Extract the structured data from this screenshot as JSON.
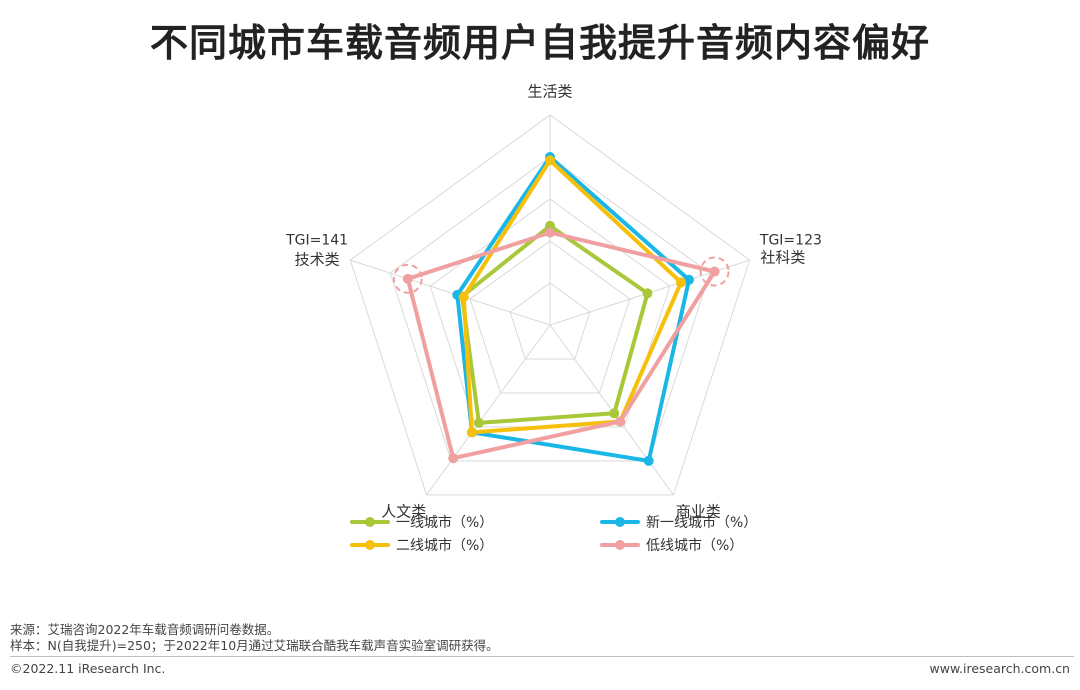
{
  "title": "不同城市车载音频用户自我提升音频内容偏好",
  "colors": {
    "tier1": "#a8c83a",
    "new_tier1": "#1ab7e6",
    "tier2": "#f5bf0a",
    "low_tier": "#f0a0a0",
    "grid": "#d9d9d9"
  },
  "chart_data": {
    "type": "radar",
    "axes": [
      "生活类",
      "社科类",
      "商业类",
      "人文类",
      "技术类"
    ],
    "rmax": 1.0,
    "series": [
      {
        "name": "一线城市（%）",
        "color_key": "tier1",
        "values": [
          0.59,
          0.61,
          0.65,
          0.72,
          0.55
        ]
      },
      {
        "name": "新一线城市（%）",
        "color_key": "new_tier1",
        "values": [
          1.0,
          0.87,
          1.0,
          0.79,
          0.58
        ]
      },
      {
        "name": "二线城市（%）",
        "color_key": "tier2",
        "values": [
          0.98,
          0.82,
          0.71,
          0.79,
          0.54
        ]
      },
      {
        "name": "低线城市（%）",
        "color_key": "low_tier",
        "values": [
          0.55,
          1.03,
          0.71,
          0.98,
          0.89
        ]
      }
    ],
    "annotations": [
      {
        "axis": "技术类",
        "text": "TGI=141"
      },
      {
        "axis": "社科类",
        "text": "TGI=123"
      }
    ]
  },
  "legend": [
    {
      "label": "一线城市（%）",
      "color_key": "tier1"
    },
    {
      "label": "新一线城市（%）",
      "color_key": "new_tier1"
    },
    {
      "label": "二线城市（%）",
      "color_key": "tier2"
    },
    {
      "label": "低线城市（%）",
      "color_key": "low_tier"
    }
  ],
  "footer": {
    "source": "来源：艾瑞咨询2022年车载音频调研问卷数据。",
    "sample": "样本：N(自我提升)=250；于2022年10月通过艾瑞联合酷我车载声音实验室调研获得。",
    "copyright": "©2022.11 iResearch Inc.",
    "website": "www.iresearch.com.cn"
  }
}
